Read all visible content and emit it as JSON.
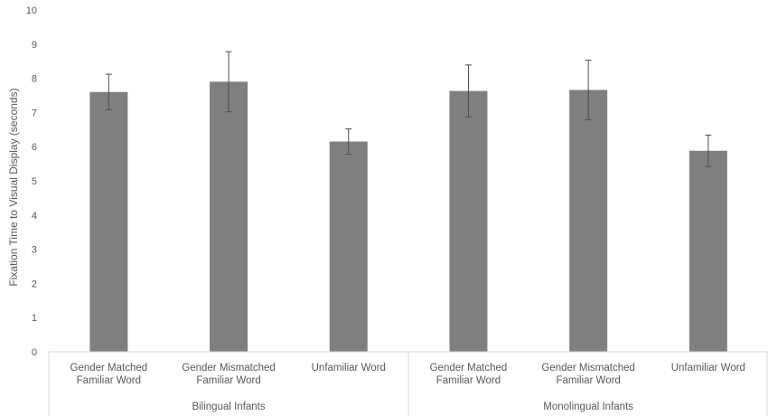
{
  "chart_data": {
    "type": "bar",
    "title": "",
    "xlabel": "",
    "ylabel": "Fixation Time to Visual Display (seconds)",
    "ylim": [
      0,
      10
    ],
    "yticks": [
      0,
      1,
      2,
      3,
      4,
      5,
      6,
      7,
      8,
      9,
      10
    ],
    "grid": false,
    "bar_color": "#7f7f7f",
    "groups": [
      {
        "name": "Bilingual Infants",
        "categories": [
          [
            "Gender Matched",
            "Familiar Word"
          ],
          [
            "Gender Mismatched",
            "Familiar Word"
          ],
          [
            "Unfamiliar Word"
          ]
        ],
        "values": [
          7.6,
          7.9,
          6.15
        ],
        "error": [
          0.52,
          0.88,
          0.37
        ]
      },
      {
        "name": "Monolingual Infants",
        "categories": [
          [
            "Gender Matched",
            "Familiar Word"
          ],
          [
            "Gender Mismatched",
            "Familiar Word"
          ],
          [
            "Unfamiliar Word"
          ]
        ],
        "values": [
          7.63,
          7.66,
          5.88
        ],
        "error": [
          0.76,
          0.87,
          0.46
        ]
      }
    ]
  }
}
